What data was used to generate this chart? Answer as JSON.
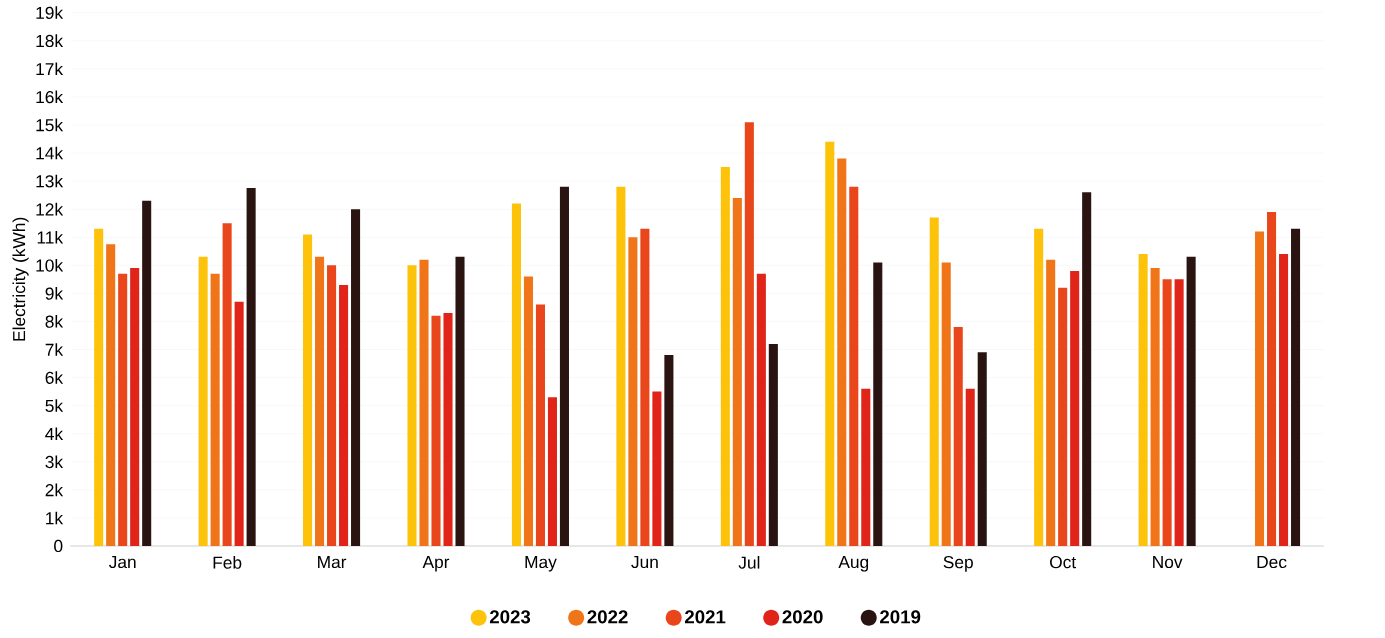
{
  "chart_data": {
    "type": "bar",
    "ylabel": "Electricity (kWh)",
    "categories": [
      "Jan",
      "Feb",
      "Mar",
      "Apr",
      "May",
      "Jun",
      "Jul",
      "Aug",
      "Sep",
      "Oct",
      "Nov",
      "Dec"
    ],
    "series": [
      {
        "name": "2023",
        "color": "#fcc30a",
        "values": [
          11300,
          10300,
          11100,
          10000,
          12200,
          12800,
          13500,
          14400,
          11700,
          11300,
          10400,
          null
        ]
      },
      {
        "name": "2022",
        "color": "#f07518",
        "values": [
          10750,
          9700,
          10300,
          10200,
          9600,
          11000,
          12400,
          13800,
          10100,
          10200,
          9900,
          11200
        ]
      },
      {
        "name": "2021",
        "color": "#e9461c",
        "values": [
          9700,
          11500,
          10000,
          8200,
          8600,
          11300,
          15100,
          12800,
          7800,
          9200,
          9500,
          11900
        ]
      },
      {
        "name": "2020",
        "color": "#e0241a",
        "values": [
          9900,
          8700,
          9300,
          8300,
          5300,
          5500,
          9700,
          5600,
          5600,
          9800,
          9500,
          10400
        ]
      },
      {
        "name": "2019",
        "color": "#2a1412",
        "values": [
          12300,
          12750,
          12000,
          10300,
          12800,
          6800,
          7200,
          10100,
          6900,
          12600,
          10300,
          11300
        ]
      }
    ],
    "ylim": [
      0,
      19000
    ],
    "yticks": [
      0,
      {
        "value": 1000,
        "label": "1k"
      },
      {
        "value": 2000,
        "label": "2k"
      },
      {
        "value": 3000,
        "label": "3k"
      },
      {
        "value": 4000,
        "label": "4k"
      },
      {
        "value": 5000,
        "label": "5k"
      },
      {
        "value": 6000,
        "label": "6k"
      },
      {
        "value": 7000,
        "label": "7k"
      },
      {
        "value": 8000,
        "label": "8k"
      },
      {
        "value": 9000,
        "label": "9k"
      },
      {
        "value": 10000,
        "label": "10k"
      },
      {
        "value": 11000,
        "label": "11k"
      },
      {
        "value": 12000,
        "label": "12k"
      },
      {
        "value": 13000,
        "label": "13k"
      },
      {
        "value": 14000,
        "label": "14k"
      },
      {
        "value": 15000,
        "label": "15k"
      },
      {
        "value": 16000,
        "label": "16k"
      },
      {
        "value": 17000,
        "label": "17k"
      },
      {
        "value": 18000,
        "label": "18k"
      },
      {
        "value": 19000,
        "label": "19k"
      }
    ],
    "grid": "y",
    "legend": "bottom",
    "marker": "circle"
  }
}
